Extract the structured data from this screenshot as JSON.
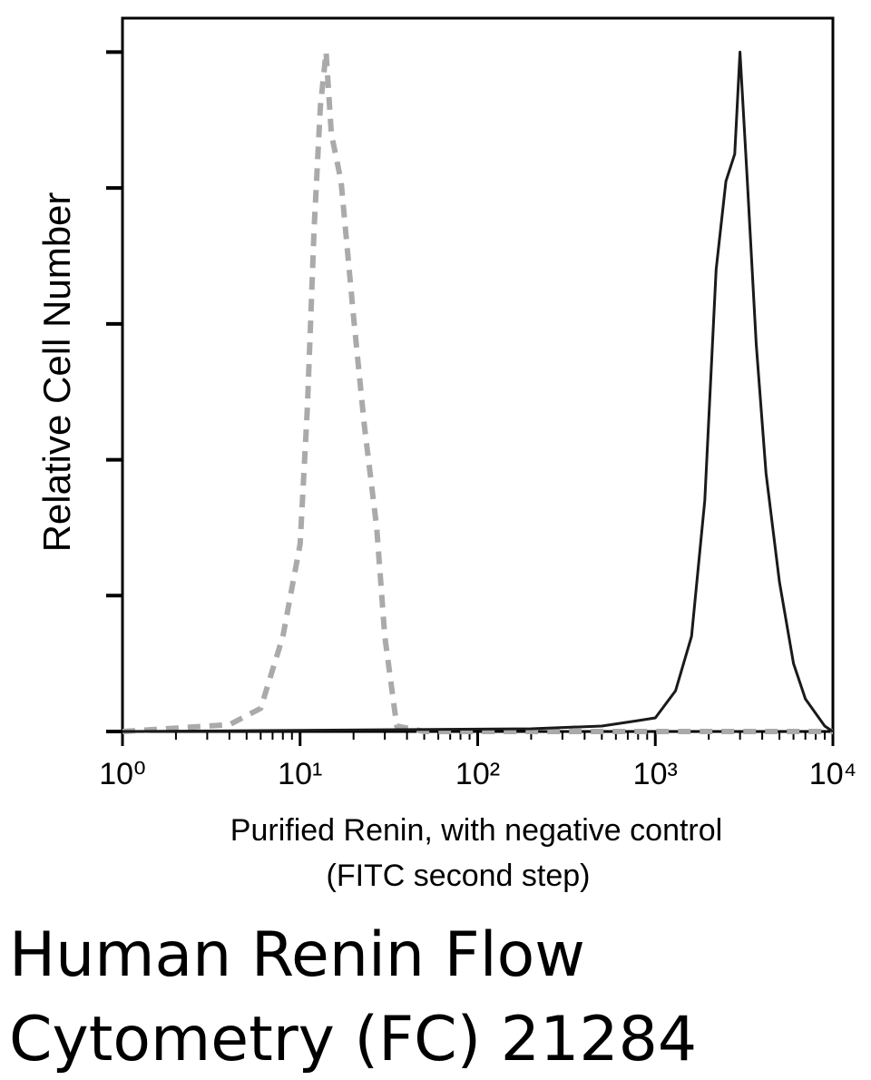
{
  "chart_data": {
    "type": "line",
    "x_label_lines": [
      "Purified Renin, with negative control",
      "(FITC second step)"
    ],
    "y_label": "Relative Cell Number",
    "caption_lines": [
      "Human Renin Flow",
      "Cytometry (FC) 21284"
    ],
    "xscale": "log",
    "xlim": [
      1,
      10000
    ],
    "xticks": [
      {
        "value": 1,
        "label": "10⁰"
      },
      {
        "value": 10,
        "label": "10¹"
      },
      {
        "value": 100,
        "label": "10²"
      },
      {
        "value": 1000,
        "label": "10³"
      },
      {
        "value": 10000,
        "label": "10⁴"
      }
    ],
    "xminorticks": [
      2,
      3,
      4,
      5,
      6,
      7,
      8,
      9,
      20,
      30,
      40,
      50,
      60,
      70,
      80,
      90,
      200,
      300,
      400,
      500,
      600,
      700,
      800,
      900,
      2000,
      3000,
      4000,
      5000,
      6000,
      7000,
      8000,
      9000
    ],
    "ylim": [
      0,
      5.25
    ],
    "yticks": [
      0,
      1,
      2,
      3,
      4,
      5
    ],
    "series": [
      {
        "color": "#aaaaaa",
        "dash": true,
        "x": [
          1,
          4,
          6,
          8,
          10,
          11,
          12,
          13,
          14,
          15,
          17,
          20,
          23,
          27,
          30,
          35,
          50,
          100,
          1000,
          10000
        ],
        "values": [
          0,
          0.05,
          0.17,
          0.7,
          1.38,
          2.4,
          3.7,
          4.6,
          5.0,
          4.4,
          4.05,
          3.05,
          2.25,
          1.5,
          0.7,
          0.04,
          0,
          0,
          0,
          0
        ]
      },
      {
        "color": "#1a1a1a",
        "dash": false,
        "x": [
          1,
          200,
          500,
          800,
          1000,
          1300,
          1600,
          1900,
          2200,
          2500,
          2800,
          3000,
          3300,
          3700,
          4200,
          5000,
          6000,
          7000,
          9000,
          10000
        ],
        "values": [
          0,
          0.02,
          0.04,
          0.08,
          0.1,
          0.3,
          0.7,
          1.7,
          3.4,
          4.05,
          4.25,
          5.0,
          4.05,
          2.85,
          1.9,
          1.1,
          0.5,
          0.24,
          0.04,
          0
        ]
      }
    ]
  }
}
